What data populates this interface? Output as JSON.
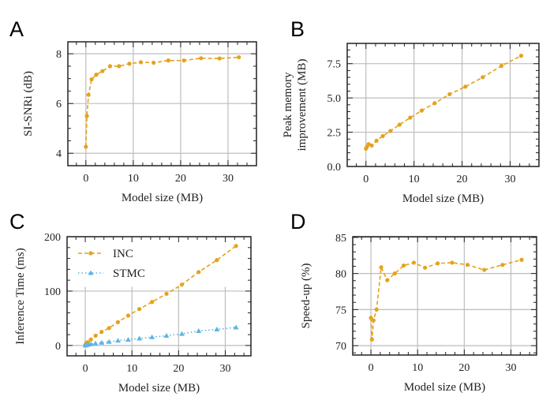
{
  "colors": {
    "inc": "#E5A21C",
    "stmc": "#5BB5E5",
    "grid": "#bdbdbd",
    "axis": "#222222"
  },
  "chart_data": [
    {
      "panel": "A",
      "type": "line",
      "xlabel": "Model size (MB)",
      "ylabel": "SI-SNRi (dB)",
      "xlim": [
        -3.8,
        36
      ],
      "ylim": [
        3.5,
        8.48
      ],
      "xticks": [
        0,
        10,
        20,
        30
      ],
      "yticks": [
        4,
        6,
        8
      ],
      "xminor": 2,
      "yminor": 0.5,
      "grid": true,
      "series": [
        {
          "color": "#E5A21C",
          "style": "dashed",
          "marker": "circle",
          "x": [
            0,
            0.22,
            0.56,
            1.2,
            2.2,
            3.5,
            5.1,
            7.0,
            9.2,
            11.6,
            14.3,
            17.4,
            20.7,
            24.3,
            28.2,
            32.3
          ],
          "y": [
            4.26,
            5.5,
            6.35,
            6.97,
            7.16,
            7.3,
            7.5,
            7.5,
            7.6,
            7.66,
            7.64,
            7.73,
            7.73,
            7.82,
            7.81,
            7.86
          ]
        }
      ]
    },
    {
      "panel": "B",
      "type": "line",
      "xlabel": "Model size (MB)",
      "ylabel": "Peak memory improvement (MB)",
      "ylabel_lines": [
        "Peak memory",
        "improvement (MB)"
      ],
      "xlim": [
        -3.9,
        36
      ],
      "ylim": [
        0,
        8.98
      ],
      "xticks": [
        0,
        10,
        20,
        30
      ],
      "yticks": [
        0.0,
        2.5,
        5.0,
        7.5
      ],
      "ytick_labels": [
        "0.0",
        "2.5",
        "5.0",
        "7.5"
      ],
      "xminor": 2,
      "yminor": 0.5,
      "grid": true,
      "series": [
        {
          "color": "#E5A21C",
          "style": "dashed",
          "marker": "circle",
          "x": [
            0,
            0.22,
            0.56,
            1.2,
            2.2,
            3.5,
            5.1,
            7.0,
            9.2,
            11.6,
            14.3,
            17.4,
            20.7,
            24.3,
            28.2,
            32.3
          ],
          "y": [
            1.3,
            1.45,
            1.63,
            1.53,
            1.88,
            2.22,
            2.59,
            3.05,
            3.56,
            4.08,
            4.62,
            5.27,
            5.82,
            6.51,
            7.34,
            8.08
          ]
        }
      ]
    },
    {
      "panel": "C",
      "type": "line",
      "xlabel": "Model size (MB)",
      "ylabel": "Inference Time (ms)",
      "xlim": [
        -3.9,
        35.5
      ],
      "ylim": [
        -19,
        200
      ],
      "xticks": [
        0,
        10,
        20,
        30
      ],
      "yticks": [
        0,
        100,
        200
      ],
      "xminor": 2,
      "yminor": 20,
      "grid": true,
      "legend": "top-left",
      "series": [
        {
          "name": "INC",
          "color": "#E5A21C",
          "style": "dashed",
          "marker": "circle",
          "x": [
            0,
            0.22,
            0.56,
            1.2,
            2.2,
            3.5,
            5.1,
            7.0,
            9.2,
            11.6,
            14.3,
            17.4,
            20.7,
            24.3,
            28.2,
            32.3
          ],
          "y": [
            1,
            5,
            6,
            11,
            18,
            25,
            32,
            43,
            55,
            67,
            80,
            95,
            112,
            135,
            157,
            183
          ]
        },
        {
          "name": "STMC",
          "color": "#5BB5E5",
          "style": "dotted",
          "marker": "triangle",
          "x": [
            0,
            0.22,
            0.56,
            1.2,
            2.2,
            3.5,
            5.1,
            7.0,
            9.2,
            11.6,
            14.3,
            17.4,
            20.7,
            24.3,
            28.2,
            32.3
          ],
          "y": [
            0,
            1,
            1.4,
            2.4,
            3.8,
            5.2,
            6.7,
            9,
            10.5,
            12.9,
            15.2,
            18,
            21.4,
            26.7,
            29.5,
            33.3
          ]
        }
      ]
    },
    {
      "panel": "D",
      "type": "line",
      "xlabel": "Model size (MB)",
      "ylabel": "Speed-up (%)",
      "xlim": [
        -3.9,
        35.5
      ],
      "ylim": [
        68.7,
        85.1
      ],
      "xticks": [
        0,
        10,
        20,
        30
      ],
      "yticks": [
        70,
        75,
        80,
        85
      ],
      "xminor": 2,
      "yminor": 1,
      "grid": true,
      "series": [
        {
          "color": "#E5A21C",
          "style": "dashed",
          "marker": "circle",
          "x": [
            0,
            0.22,
            0.56,
            1.2,
            2.2,
            3.5,
            5.1,
            7.0,
            9.2,
            11.6,
            14.3,
            17.4,
            20.7,
            24.3,
            28.2,
            32.3
          ],
          "y": [
            73.85,
            70.86,
            73.5,
            75.0,
            80.86,
            79.07,
            80.0,
            81.1,
            81.5,
            80.8,
            81.4,
            81.5,
            81.2,
            80.5,
            81.2,
            81.9
          ]
        }
      ]
    }
  ]
}
